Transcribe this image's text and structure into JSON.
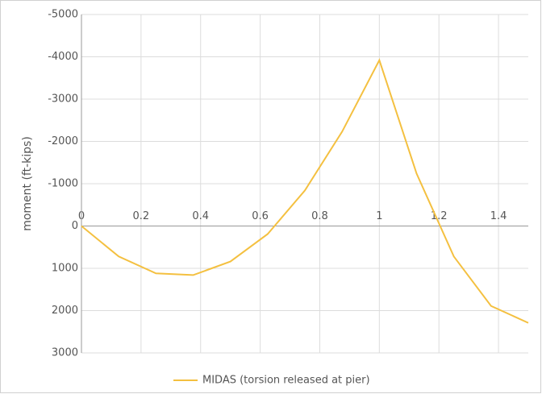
{
  "chart_data": {
    "type": "line",
    "y_label": "moment (ft-kips)",
    "x": [
      0,
      0.125,
      0.25,
      0.375,
      0.5,
      0.625,
      0.75,
      0.875,
      1.0,
      1.125,
      1.25,
      1.375,
      1.5
    ],
    "series": [
      {
        "name": "MIDAS (torsion released at pier)",
        "color": "#f4c040",
        "values": [
          0,
          720,
          1120,
          1160,
          840,
          190,
          -840,
          -2230,
          -3920,
          -1240,
          720,
          1890,
          2290
        ]
      }
    ],
    "xlim": [
      0,
      1.5
    ],
    "xticks": [
      0,
      0.2,
      0.4,
      0.6,
      0.8,
      1,
      1.2,
      1.4
    ],
    "ylim": [
      -5000,
      3000
    ],
    "yticks": [
      -5000,
      -4000,
      -3000,
      -2000,
      -1000,
      0,
      1000,
      2000,
      3000
    ],
    "y_inverted": true,
    "grid": true,
    "legend": "bottom"
  }
}
